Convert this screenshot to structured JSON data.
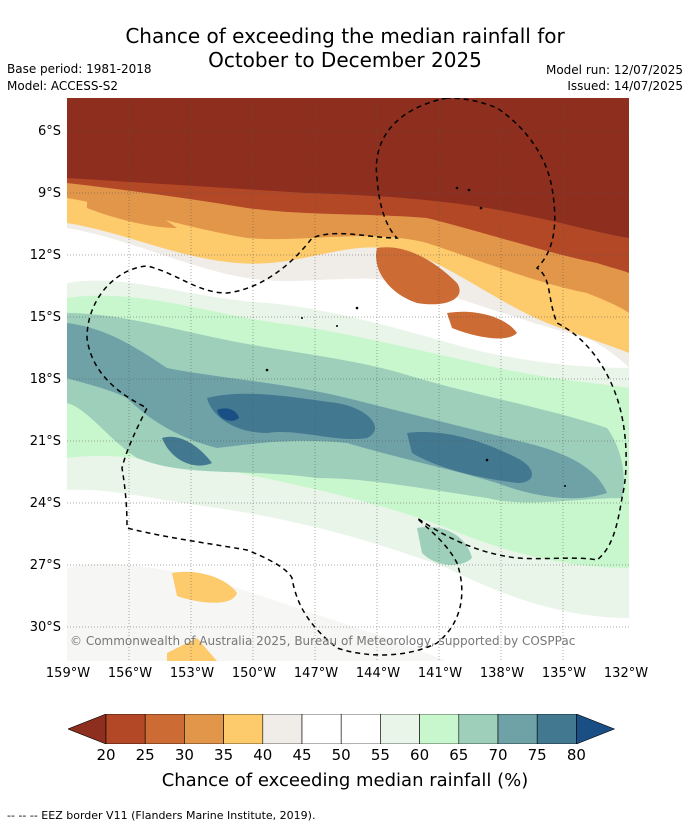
{
  "title_line1": "Chance of exceeding the median rainfall for",
  "title_line2": "October to December 2025",
  "base_period": "Base period: 1981-2018",
  "model": "Model: ACCESS-S2",
  "model_run": "Model run: 12/07/2025",
  "issued": "Issued: 14/07/2025",
  "lat_ticks": [
    "6°S",
    "9°S",
    "12°S",
    "15°S",
    "18°S",
    "21°S",
    "24°S",
    "27°S",
    "30°S"
  ],
  "lon_ticks": [
    "159°W",
    "156°W",
    "153°W",
    "150°W",
    "147°W",
    "144°W",
    "141°W",
    "138°W",
    "135°W",
    "132°W"
  ],
  "copyright": "© Commonwealth of Australia 2025, Bureau of Meteorology, supported by COSPPac",
  "colorbar": {
    "labels": [
      "20",
      "25",
      "30",
      "35",
      "40",
      "45",
      "50",
      "55",
      "60",
      "65",
      "70",
      "75",
      "80"
    ],
    "colors": [
      "#8e2e1e",
      "#b24826",
      "#cd6b35",
      "#e2964a",
      "#fdca6c",
      "#f0ece8",
      "#ffffff",
      "#ffffff",
      "#e9f5e9",
      "#c9f7cd",
      "#9dcfba",
      "#6ea2a7",
      "#437891",
      "#1a4f85"
    ],
    "title": "Chance of exceeding median rainfall (%)"
  },
  "footer": "--  --  -- EEZ border V11 (Flanders Marine Institute, 2019)."
}
